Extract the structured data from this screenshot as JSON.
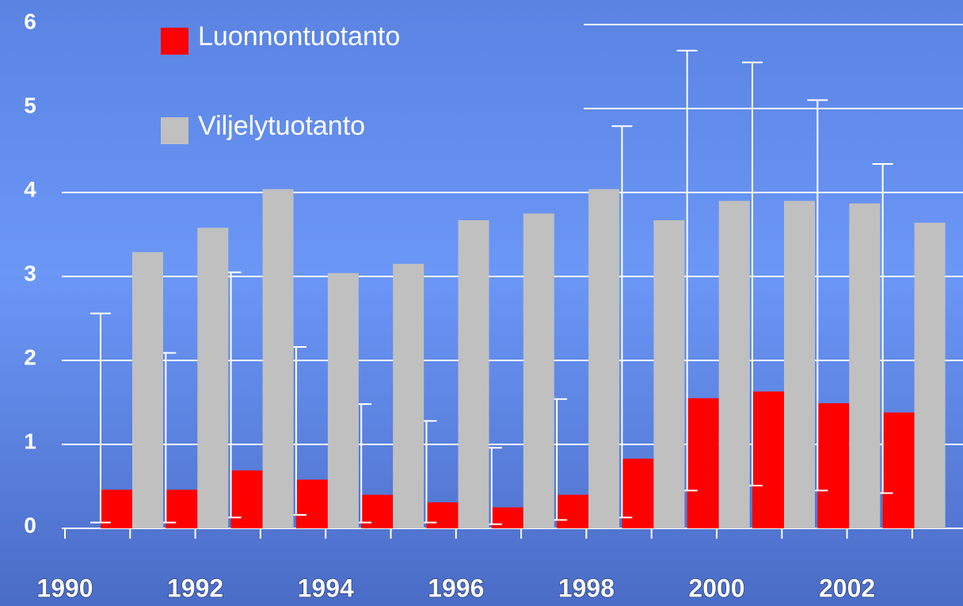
{
  "chart_data": {
    "type": "bar",
    "x_labels": [
      "1990",
      "1992",
      "1994",
      "1996",
      "1998",
      "2000",
      "2002"
    ],
    "categories": [
      null,
      null,
      null,
      null,
      null,
      null,
      null,
      null,
      null,
      null,
      null,
      null,
      null
    ],
    "series": [
      {
        "name": "Luonnontuotanto",
        "color": "#ff0000",
        "values": [
          0.46,
          0.46,
          0.69,
          0.58,
          0.4,
          0.31,
          0.25,
          0.4,
          0.83,
          1.55,
          1.63,
          1.49,
          1.38
        ],
        "error_low": [
          0.07,
          0.07,
          0.13,
          0.16,
          0.07,
          0.07,
          0.05,
          0.1,
          0.13,
          0.45,
          0.51,
          0.45,
          0.42
        ],
        "error_high": [
          2.56,
          2.09,
          3.05,
          2.16,
          1.48,
          1.28,
          0.96,
          1.54,
          4.79,
          5.69,
          5.55,
          5.1,
          4.34
        ]
      },
      {
        "name": "Viljelytuotanto",
        "color": "#c0c0c0",
        "values": [
          3.29,
          3.58,
          4.04,
          3.04,
          3.15,
          3.67,
          3.75,
          4.04,
          3.67,
          3.9,
          3.9,
          3.87,
          3.64
        ]
      }
    ],
    "ylim": [
      0,
      6
    ],
    "yticks": [
      0,
      1,
      2,
      3,
      4,
      5,
      6
    ],
    "grid": true
  }
}
